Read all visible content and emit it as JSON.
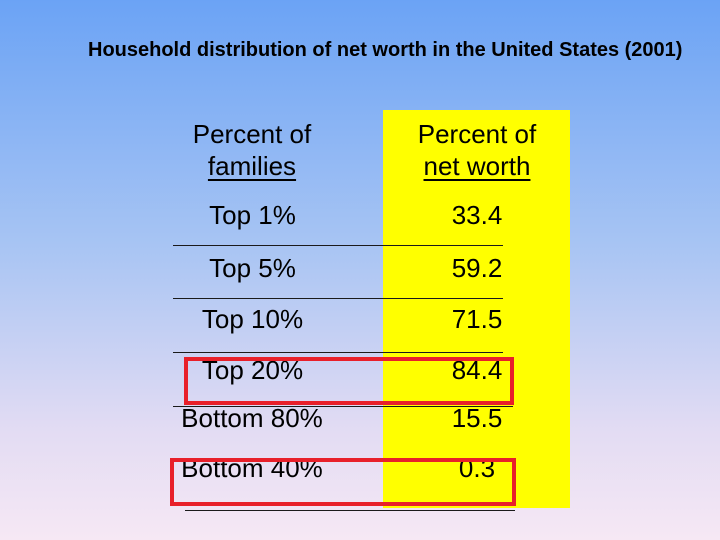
{
  "title": "Household distribution of net worth in the United States (2001)",
  "table": {
    "headers": {
      "families_line1": "Percent of",
      "families_line2": "families",
      "networth_line1": "Percent of",
      "networth_line2": "net worth"
    },
    "rows": [
      {
        "group": "Top 1%",
        "net_worth": "33.4"
      },
      {
        "group": "Top 5%",
        "net_worth": "59.2"
      },
      {
        "group": "Top 10%",
        "net_worth": "71.5"
      },
      {
        "group": "Top 20%",
        "net_worth": "84.4"
      },
      {
        "group": "Bottom 80%",
        "net_worth": "15.5"
      },
      {
        "group": "Bottom 40%",
        "net_worth": "0.3"
      }
    ]
  },
  "highlights": [
    "Top 20%",
    "Bottom 40%"
  ],
  "colors": {
    "highlight_column": "#ffff00",
    "highlight_box": "#e8202a"
  }
}
